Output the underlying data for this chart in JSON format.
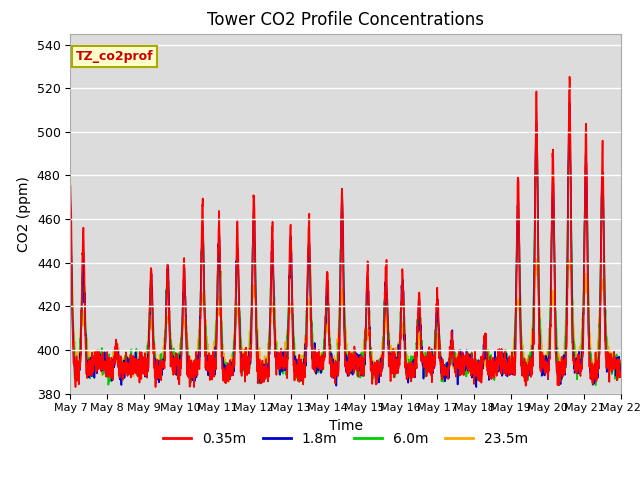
{
  "title": "Tower CO2 Profile Concentrations",
  "xlabel": "Time",
  "ylabel": "CO2 (ppm)",
  "ylim": [
    380,
    545
  ],
  "yticks": [
    380,
    400,
    420,
    440,
    460,
    480,
    500,
    520,
    540
  ],
  "legend_label": "TZ_co2prof",
  "series_labels": [
    "0.35m",
    "1.8m",
    "6.0m",
    "23.5m"
  ],
  "series_colors": [
    "#ff0000",
    "#0000cc",
    "#00cc00",
    "#ffaa00"
  ],
  "background_color": "#dcdcdc",
  "xtick_labels": [
    "May 7",
    "May 8",
    "May 9",
    "May 10",
    "May 11",
    "May 12",
    "May 13",
    "May 14",
    "May 15",
    "May 16",
    "May 17",
    "May 18",
    "May 19",
    "May 20",
    "May 21",
    "May 22"
  ],
  "spike_times": [
    0.0,
    0.35,
    1.25,
    2.2,
    2.65,
    3.1,
    3.6,
    4.05,
    4.55,
    5.0,
    5.5,
    6.0,
    6.5,
    7.0,
    7.4,
    8.1,
    8.6,
    9.05,
    9.5,
    10.0,
    10.4,
    11.3,
    12.2,
    12.7,
    13.15,
    13.6,
    14.05,
    14.5
  ],
  "spike_amps_red": [
    78,
    65,
    15,
    48,
    45,
    50,
    72,
    70,
    65,
    80,
    65,
    65,
    68,
    44,
    82,
    45,
    45,
    45,
    33,
    33,
    15,
    15,
    90,
    120,
    100,
    130,
    110,
    100
  ],
  "spike_amps_blue": [
    65,
    50,
    12,
    44,
    42,
    45,
    65,
    60,
    55,
    72,
    58,
    58,
    60,
    38,
    78,
    40,
    40,
    40,
    28,
    28,
    12,
    12,
    80,
    110,
    88,
    118,
    98,
    90
  ],
  "spike_amps_green": [
    58,
    44,
    10,
    40,
    38,
    40,
    58,
    54,
    48,
    65,
    52,
    52,
    54,
    32,
    70,
    35,
    35,
    35,
    24,
    24,
    10,
    10,
    70,
    100,
    78,
    108,
    88,
    80
  ],
  "spike_amps_orange": [
    35,
    25,
    8,
    22,
    20,
    22,
    32,
    30,
    26,
    35,
    28,
    28,
    30,
    18,
    35,
    18,
    18,
    18,
    12,
    12,
    6,
    6,
    32,
    45,
    35,
    48,
    40,
    38
  ]
}
